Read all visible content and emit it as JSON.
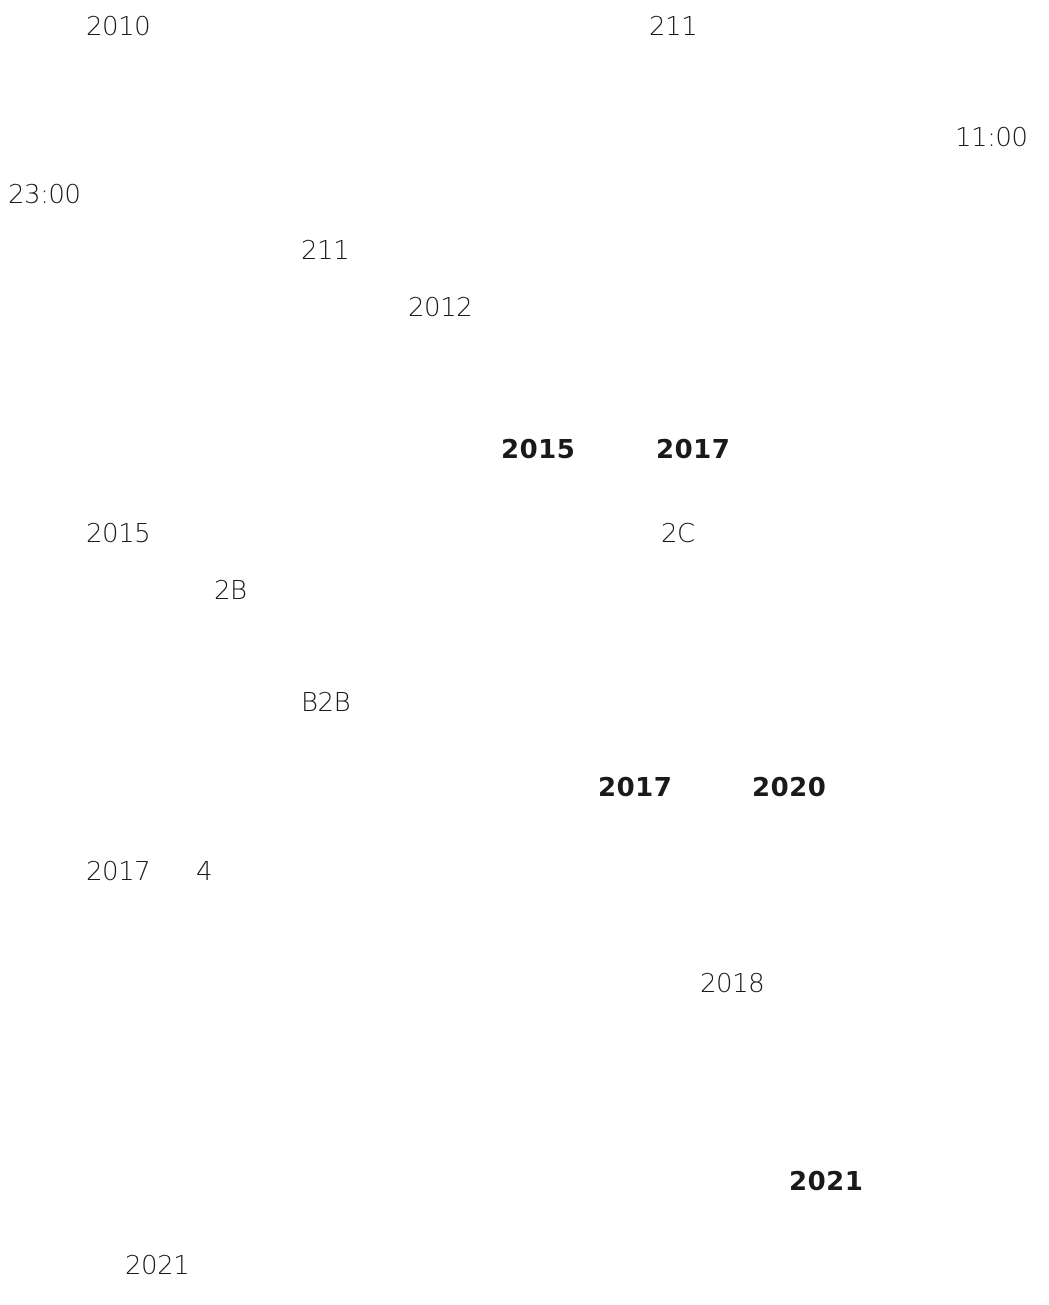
{
  "fragments": {
    "p1_year": "2010",
    "p1_num": "211",
    "p2_time_start": "11:00",
    "p2_time_end": "23:00",
    "p3_num": "211",
    "p4_year": "2012",
    "h1_from": "2015",
    "h1_to": "2017",
    "p5_year": "2015",
    "p5_code": "2C",
    "p6_code": "2B",
    "p7_code": "B2B",
    "h2_from": "2017",
    "h2_to": "2020",
    "p8_year": "2017",
    "p8_month": "4",
    "p9_year": "2018",
    "h3_year": "2021",
    "p10_year": "2021"
  }
}
